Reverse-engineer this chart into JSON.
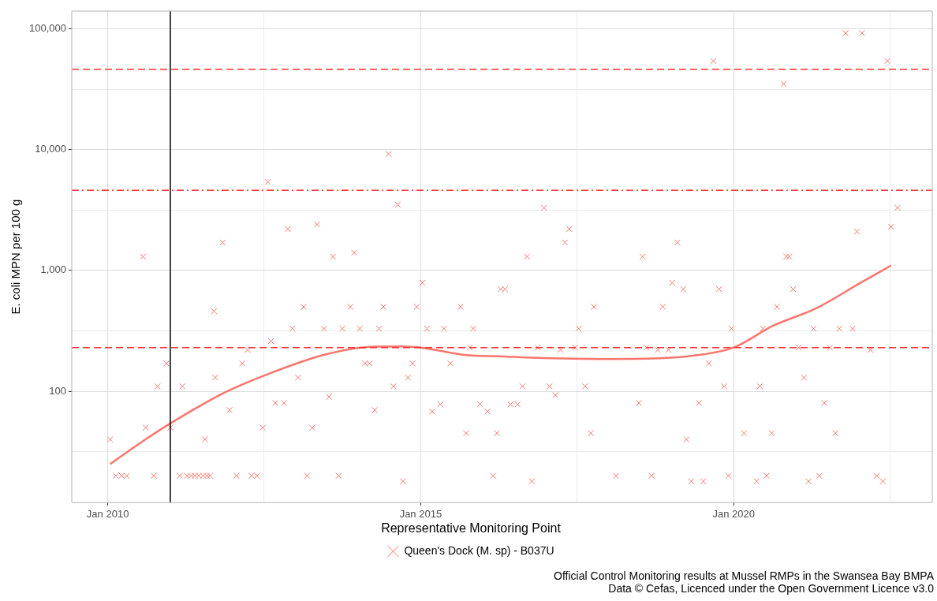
{
  "chart_data": {
    "type": "scatter",
    "ylabel": "E. coli MPN per 100 g",
    "legend_title": "Representative Monitoring Point",
    "legend": "bottom",
    "grid": true,
    "log": "y",
    "xlim": [
      "2009-06-05",
      "2023-03-05"
    ],
    "xticks": [
      {
        "value": "2010-01-01",
        "label": "Jan 2010"
      },
      {
        "value": "2012-07-01",
        "label": null
      },
      {
        "value": "2015-01-01",
        "label": "Jan 2015"
      },
      {
        "value": "2017-07-01",
        "label": null
      },
      {
        "value": "2020-01-01",
        "label": "Jan 2020"
      },
      {
        "value": "2022-07-01",
        "label": null
      }
    ],
    "ylim": [
      12,
      140000
    ],
    "yticks": [
      {
        "value": 31.6,
        "label": null
      },
      {
        "value": 100,
        "label": "100"
      },
      {
        "value": 316,
        "label": null
      },
      {
        "value": 1000,
        "label": "1,000"
      },
      {
        "value": 3162,
        "label": null
      },
      {
        "value": 10000,
        "label": "10,000"
      },
      {
        "value": 31623,
        "label": null
      },
      {
        "value": 100000,
        "label": "100,000"
      }
    ],
    "series": [
      {
        "name": "Queen's Dock (M. sp) - B037U",
        "marker": "cross",
        "color": "#f8766d",
        "x": [
          "2010-01-15",
          "2010-02-17",
          "2010-03-23",
          "2010-04-22",
          "2010-07-26",
          "2010-08-10",
          "2010-09-27",
          "2010-10-19",
          "2010-12-09",
          "2011-01-01",
          "2011-02-25",
          "2011-03-13",
          "2011-04-08",
          "2011-05-03",
          "2011-05-25",
          "2011-06-16",
          "2011-07-11",
          "2011-08-03",
          "2011-07-22",
          "2011-08-21",
          "2011-09-13",
          "2011-09-20",
          "2011-11-03",
          "2011-12-13",
          "2012-01-22",
          "2012-02-25",
          "2012-03-27",
          "2012-04-19",
          "2012-05-21",
          "2012-06-23",
          "2012-07-22",
          "2012-08-10",
          "2012-09-05",
          "2012-10-26",
          "2012-11-17",
          "2012-12-13",
          "2013-01-15",
          "2013-02-17",
          "2013-03-09",
          "2013-04-08",
          "2013-05-07",
          "2013-06-16",
          "2013-07-15",
          "2013-08-07",
          "2013-09-09",
          "2013-10-01",
          "2013-11-17",
          "2013-12-09",
          "2014-01-11",
          "2014-02-10",
          "2014-03-09",
          "2014-04-08",
          "2014-05-03",
          "2014-05-28",
          "2014-06-27",
          "2014-07-26",
          "2014-08-21",
          "2014-09-20",
          "2014-10-19",
          "2014-11-14",
          "2014-12-09",
          "2015-01-11",
          "2015-02-07",
          "2015-03-09",
          "2015-04-26",
          "2015-05-17",
          "2015-06-23",
          "2015-08-21",
          "2015-09-23",
          "2015-10-15",
          "2015-11-03",
          "2015-12-13",
          "2016-01-26",
          "2016-02-28",
          "2016-03-20",
          "2016-04-11",
          "2016-05-07",
          "2016-06-09",
          "2016-07-19",
          "2016-08-17",
          "2016-09-13",
          "2016-10-11",
          "2016-11-14",
          "2016-12-20",
          "2017-01-22",
          "2017-02-25",
          "2017-03-27",
          "2017-04-22",
          "2017-05-17",
          "2017-06-20",
          "2017-07-11",
          "2017-08-17",
          "2017-09-20",
          "2017-10-08",
          "2018-02-14",
          "2018-06-27",
          "2018-07-19",
          "2018-08-10",
          "2018-09-09",
          "2018-10-15",
          "2018-11-14",
          "2018-12-16",
          "2019-01-08",
          "2019-02-07",
          "2019-03-13",
          "2019-04-01",
          "2019-04-29",
          "2019-06-13",
          "2019-07-08",
          "2019-08-10",
          "2019-09-05",
          "2019-10-08",
          "2019-11-07",
          "2019-12-02",
          "2019-12-20",
          "2020-03-02",
          "2020-05-14",
          "2020-06-02",
          "2020-06-20",
          "2020-07-11",
          "2020-08-10",
          "2020-09-09",
          "2020-10-19",
          "2020-11-03",
          "2020-11-21",
          "2020-12-13",
          "2021-01-15",
          "2021-02-14",
          "2021-03-13",
          "2021-04-11",
          "2021-05-14",
          "2021-06-13",
          "2021-07-15",
          "2021-08-17",
          "2021-09-09",
          "2021-10-15",
          "2021-11-25",
          "2021-12-20",
          "2022-01-19",
          "2022-03-09",
          "2022-04-15",
          "2022-05-21",
          "2022-06-16",
          "2022-07-08",
          "2022-08-14"
        ],
        "values": [
          40,
          20,
          20,
          20,
          1300,
          50,
          20,
          110,
          170,
          50,
          20,
          110,
          20,
          20,
          20,
          20,
          20,
          20,
          40,
          20,
          460,
          130,
          1700,
          70,
          20,
          170,
          220,
          20,
          20,
          50,
          5400,
          260,
          80,
          80,
          2200,
          330,
          130,
          500,
          20,
          50,
          2400,
          330,
          90,
          1300,
          20,
          330,
          500,
          1400,
          330,
          170,
          170,
          70,
          330,
          500,
          9200,
          110,
          3500,
          18,
          130,
          170,
          500,
          790,
          330,
          68,
          78,
          330,
          170,
          500,
          45,
          230,
          330,
          78,
          68,
          20,
          45,
          700,
          700,
          78,
          78,
          110,
          1300,
          18,
          230,
          3300,
          110,
          93,
          220,
          1700,
          2200,
          230,
          330,
          110,
          45,
          500,
          20,
          80,
          1300,
          230,
          20,
          220,
          500,
          220,
          790,
          1700,
          700,
          40,
          18,
          80,
          18,
          170,
          54000,
          700,
          110,
          20,
          330,
          45,
          18,
          110,
          330,
          20,
          45,
          500,
          35000,
          1300,
          1300,
          700,
          230,
          130,
          18,
          330,
          20,
          80,
          230,
          45,
          330,
          92000,
          330,
          2100,
          92000,
          220,
          20,
          18,
          54000,
          2300,
          3300
        ]
      },
      {
        "type": "line",
        "marker": "none",
        "color": "#f8766d",
        "x": [
          "2010-01-15",
          "2010-08-10",
          "2011-01-08",
          "2011-11-17",
          "2012-07-08",
          "2013-05-28",
          "2014-01-19",
          "2014-07-19",
          "2015-01-01",
          "2015-09-13",
          "2016-05-03",
          "2016-12-20",
          "2017-12-27",
          "2018-11-17",
          "2019-07-08",
          "2020-01-01",
          "2020-08-21",
          "2021-04-19",
          "2022-01-04",
          "2022-07-08"
        ],
        "values": [
          25,
          40,
          55,
          98,
          136,
          197,
          230,
          235,
          230,
          200,
          194,
          188,
          185,
          188,
          202,
          230,
          350,
          480,
          780,
          1100
        ]
      }
    ],
    "ref_lines": [
      {
        "axis": "y",
        "value": 46000,
        "color": "#ff3333",
        "line_style": "dashed"
      },
      {
        "axis": "y",
        "value": 4600,
        "color": "#ff3333",
        "line_style": "dashdot"
      },
      {
        "axis": "y",
        "value": 230,
        "color": "#ff3333",
        "line_style": "dashed"
      },
      {
        "axis": "x",
        "value": "2011-01-01",
        "color": "#000000",
        "line_style": "solid"
      }
    ],
    "annotations": [
      "Official Control Monitoring results at Mussel RMPs in the Swansea Bay BMPA",
      "Data © Cefas, Licenced under the Open Government Licence v3.0"
    ]
  }
}
